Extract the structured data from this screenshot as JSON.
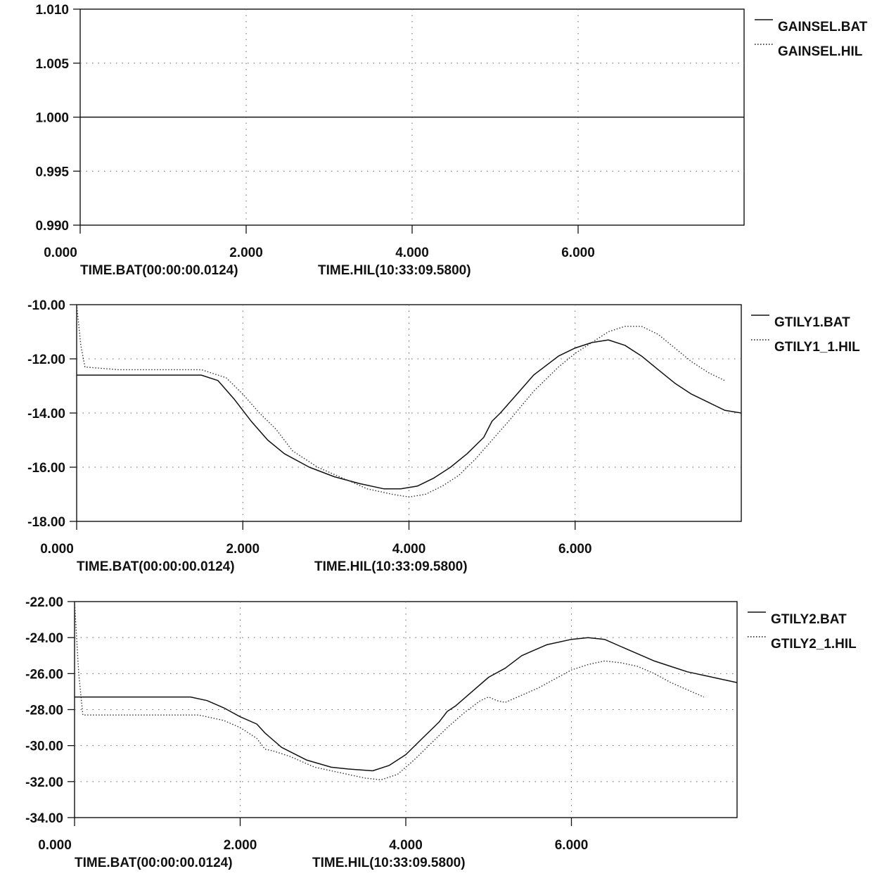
{
  "chart_data": [
    {
      "type": "line",
      "xlabel": "TIME.BAT(00:00:00.0124)",
      "xlabel2": "TIME.HIL(10:33:09.5800)",
      "xticks": [
        "0.000",
        "2.000",
        "4.000",
        "6.000"
      ],
      "yticks": [
        "1.010",
        "1.005",
        "1.000",
        "0.995",
        "0.990"
      ],
      "xlim": [
        0,
        8
      ],
      "ylim": [
        0.99,
        1.01
      ],
      "grid": true,
      "legend": "right",
      "series": [
        {
          "name": "GAINSEL.BAT",
          "style": "solid",
          "x": [
            0,
            8
          ],
          "y": [
            1.0,
            1.0
          ]
        },
        {
          "name": "GAINSEL.HIL",
          "style": "dotted",
          "x": [],
          "y": []
        }
      ]
    },
    {
      "type": "line",
      "xlabel": "TIME.BAT(00:00:00.0124)",
      "xlabel2": "TIME.HIL(10:33:09.5800)",
      "xticks": [
        "0.000",
        "2.000",
        "4.000",
        "6.000"
      ],
      "yticks": [
        "-10.00",
        "-12.00",
        "-14.00",
        "-16.00",
        "-18.00"
      ],
      "xlim": [
        0,
        8
      ],
      "ylim": [
        -18,
        -10
      ],
      "grid": true,
      "legend": "right",
      "series": [
        {
          "name": "GTILY1.BAT",
          "style": "solid",
          "x": [
            0,
            0.5,
            1.0,
            1.5,
            1.7,
            1.9,
            2.1,
            2.3,
            2.5,
            2.8,
            3.1,
            3.4,
            3.7,
            3.9,
            4.1,
            4.3,
            4.5,
            4.7,
            4.9,
            5.0,
            5.1,
            5.3,
            5.5,
            5.8,
            6.0,
            6.2,
            6.4,
            6.6,
            6.8,
            7.0,
            7.2,
            7.4,
            7.6,
            7.8,
            8.0
          ],
          "y": [
            -12.6,
            -12.6,
            -12.6,
            -12.6,
            -12.8,
            -13.5,
            -14.3,
            -15.0,
            -15.5,
            -16.0,
            -16.35,
            -16.6,
            -16.8,
            -16.8,
            -16.7,
            -16.4,
            -16.0,
            -15.5,
            -14.9,
            -14.3,
            -14.0,
            -13.3,
            -12.6,
            -11.9,
            -11.6,
            -11.4,
            -11.3,
            -11.5,
            -11.9,
            -12.4,
            -12.9,
            -13.3,
            -13.6,
            -13.9,
            -14.0
          ]
        },
        {
          "name": "GTILY1_1.HIL",
          "style": "dotted",
          "x": [
            0,
            0.05,
            0.1,
            0.5,
            1.0,
            1.5,
            1.8,
            2.0,
            2.2,
            2.4,
            2.6,
            2.9,
            3.2,
            3.5,
            3.8,
            4.0,
            4.2,
            4.4,
            4.6,
            4.8,
            5.0,
            5.2,
            5.5,
            5.8,
            6.0,
            6.2,
            6.4,
            6.6,
            6.8,
            7.0,
            7.2,
            7.4,
            7.6,
            7.8
          ],
          "y": [
            -10.0,
            -11.5,
            -12.3,
            -12.4,
            -12.4,
            -12.4,
            -12.7,
            -13.3,
            -14.0,
            -14.6,
            -15.4,
            -16.0,
            -16.4,
            -16.8,
            -17.0,
            -17.1,
            -17.0,
            -16.7,
            -16.3,
            -15.7,
            -15.0,
            -14.3,
            -13.2,
            -12.3,
            -11.8,
            -11.4,
            -11.0,
            -10.8,
            -10.8,
            -11.1,
            -11.6,
            -12.1,
            -12.5,
            -12.8
          ]
        }
      ]
    },
    {
      "type": "line",
      "xlabel": "TIME.BAT(00:00:00.0124)",
      "xlabel2": "TIME.HIL(10:33:09.5800)",
      "xticks": [
        "0.000",
        "2.000",
        "4.000",
        "6.000"
      ],
      "yticks": [
        "-22.00",
        "-24.00",
        "-26.00",
        "-28.00",
        "-30.00",
        "-32.00",
        "-34.00"
      ],
      "xlim": [
        0,
        8
      ],
      "ylim": [
        -34,
        -22
      ],
      "grid": true,
      "legend": "right",
      "series": [
        {
          "name": "GTILY2.BAT",
          "style": "solid",
          "x": [
            0,
            0.5,
            1.0,
            1.4,
            1.6,
            1.8,
            2.0,
            2.2,
            2.3,
            2.5,
            2.8,
            3.1,
            3.3,
            3.6,
            3.8,
            4.0,
            4.2,
            4.4,
            4.5,
            4.6,
            4.8,
            5.0,
            5.2,
            5.4,
            5.7,
            6.0,
            6.2,
            6.4,
            6.6,
            6.8,
            7.0,
            7.2,
            7.4,
            7.6,
            7.8,
            8.0
          ],
          "y": [
            -27.3,
            -27.3,
            -27.3,
            -27.3,
            -27.5,
            -27.9,
            -28.4,
            -28.8,
            -29.3,
            -30.1,
            -30.8,
            -31.2,
            -31.3,
            -31.4,
            -31.1,
            -30.5,
            -29.6,
            -28.7,
            -28.1,
            -27.8,
            -27.0,
            -26.2,
            -25.7,
            -25.0,
            -24.4,
            -24.1,
            -24.0,
            -24.1,
            -24.5,
            -24.9,
            -25.3,
            -25.6,
            -25.9,
            -26.1,
            -26.3,
            -26.5
          ]
        },
        {
          "name": "GTILY2_1.HIL",
          "style": "dotted",
          "x": [
            0,
            0.05,
            0.1,
            0.5,
            1.0,
            1.5,
            1.8,
            2.0,
            2.2,
            2.3,
            2.4,
            2.6,
            2.9,
            3.2,
            3.5,
            3.7,
            3.9,
            4.1,
            4.3,
            4.5,
            4.7,
            4.9,
            5.0,
            5.1,
            5.2,
            5.4,
            5.6,
            5.8,
            6.0,
            6.2,
            6.4,
            6.6,
            6.8,
            7.0,
            7.2,
            7.4,
            7.6
          ],
          "y": [
            -22.0,
            -26.0,
            -28.3,
            -28.3,
            -28.3,
            -28.3,
            -28.6,
            -29.0,
            -29.6,
            -30.2,
            -30.3,
            -30.6,
            -31.2,
            -31.5,
            -31.8,
            -31.9,
            -31.6,
            -30.8,
            -29.9,
            -29.0,
            -28.2,
            -27.5,
            -27.3,
            -27.5,
            -27.6,
            -27.2,
            -26.8,
            -26.3,
            -25.8,
            -25.5,
            -25.3,
            -25.4,
            -25.6,
            -26.0,
            -26.5,
            -26.9,
            -27.3
          ]
        }
      ]
    }
  ]
}
